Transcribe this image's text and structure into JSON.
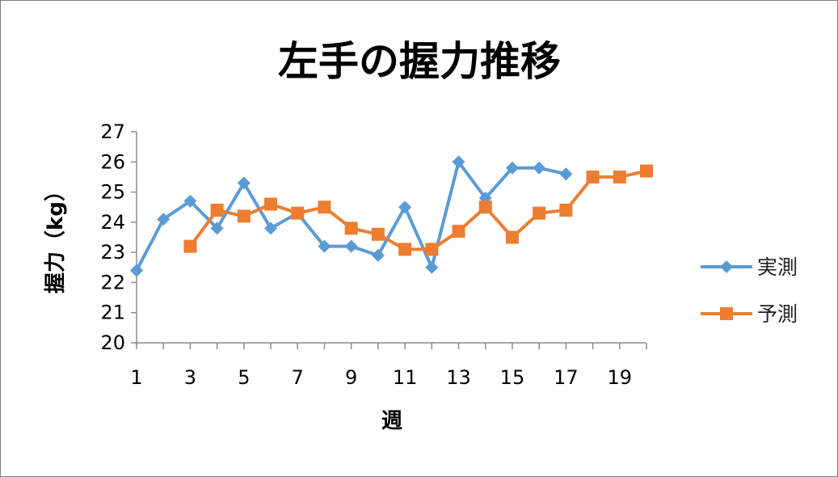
{
  "chart_data": {
    "type": "line",
    "title": "左手の握力推移",
    "xlabel": "週",
    "ylabel": "握力（kg）",
    "x": [
      1,
      2,
      3,
      4,
      5,
      6,
      7,
      8,
      9,
      10,
      11,
      12,
      13,
      14,
      15,
      16,
      17,
      18,
      19,
      20
    ],
    "x_tick_labels": [
      "1",
      "3",
      "5",
      "7",
      "9",
      "11",
      "13",
      "15",
      "17",
      "19"
    ],
    "y_tick_labels": [
      "20",
      "21",
      "22",
      "23",
      "24",
      "25",
      "26",
      "27"
    ],
    "ylim": [
      20,
      27
    ],
    "grid": false,
    "legend_position": "right",
    "series": [
      {
        "name": "実測",
        "color": "#5B9BD5",
        "marker": "diamond",
        "values": [
          22.4,
          24.1,
          24.7,
          23.8,
          25.3,
          23.8,
          24.3,
          23.2,
          23.2,
          22.9,
          24.5,
          22.5,
          26.0,
          24.8,
          25.8,
          25.8,
          25.6,
          null,
          null,
          null
        ]
      },
      {
        "name": "予測",
        "color": "#ED7D31",
        "marker": "square",
        "values": [
          null,
          null,
          23.2,
          24.4,
          24.2,
          24.6,
          24.3,
          24.5,
          23.8,
          23.6,
          23.1,
          23.1,
          23.7,
          24.5,
          23.5,
          24.3,
          24.4,
          25.5,
          25.5,
          25.7
        ]
      }
    ]
  }
}
